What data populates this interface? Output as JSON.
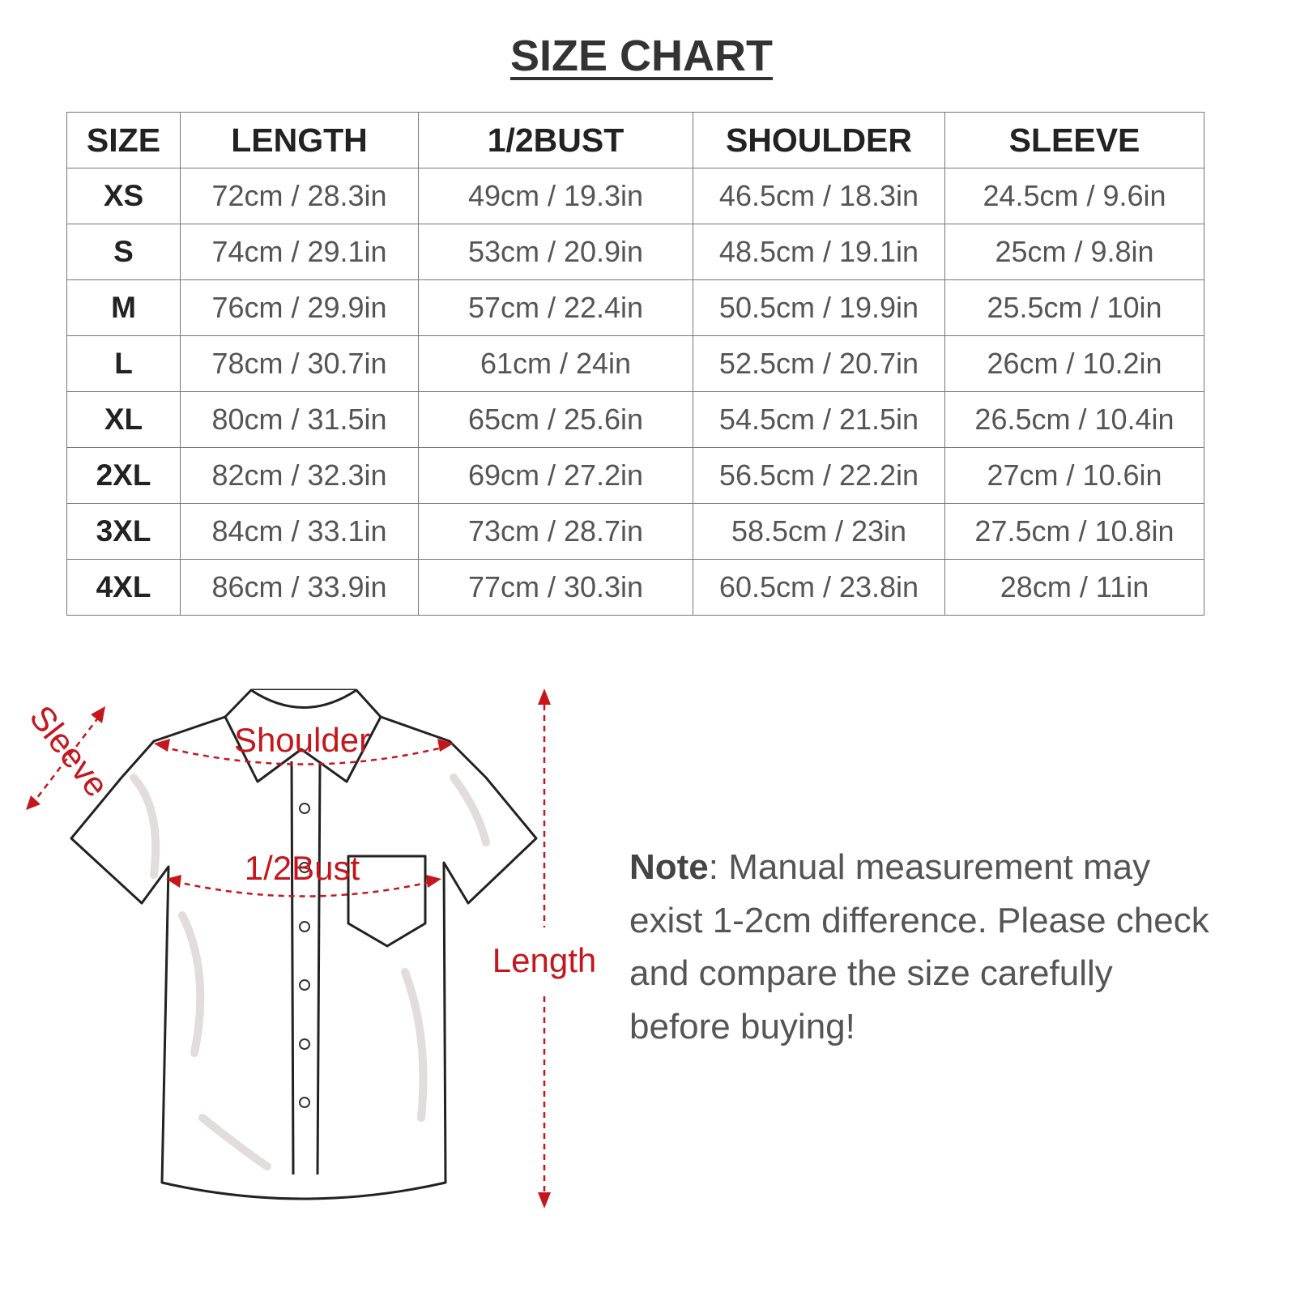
{
  "title": "SIZE CHART",
  "table": {
    "header": [
      "SIZE",
      "LENGTH",
      "1/2BUST",
      "SHOULDER",
      "SLEEVE"
    ],
    "rows": [
      [
        "XS",
        "72cm / 28.3in",
        "49cm / 19.3in",
        "46.5cm / 18.3in",
        "24.5cm / 9.6in"
      ],
      [
        "S",
        "74cm / 29.1in",
        "53cm / 20.9in",
        "48.5cm / 19.1in",
        "25cm / 9.8in"
      ],
      [
        "M",
        "76cm / 29.9in",
        "57cm / 22.4in",
        "50.5cm / 19.9in",
        "25.5cm / 10in"
      ],
      [
        "L",
        "78cm / 30.7in",
        "61cm / 24in",
        "52.5cm / 20.7in",
        "26cm / 10.2in"
      ],
      [
        "XL",
        "80cm / 31.5in",
        "65cm / 25.6in",
        "54.5cm / 21.5in",
        "26.5cm / 10.4in"
      ],
      [
        "2XL",
        "82cm / 32.3in",
        "69cm / 27.2in",
        "56.5cm / 22.2in",
        "27cm / 10.6in"
      ],
      [
        "3XL",
        "84cm / 33.1in",
        "73cm / 28.7in",
        "58.5cm / 23in",
        "27.5cm / 10.8in"
      ],
      [
        "4XL",
        "86cm / 33.9in",
        "77cm / 30.3in",
        "60.5cm / 23.8in",
        "28cm / 11in"
      ]
    ]
  },
  "diagram": {
    "sleeve": "Sleeve",
    "shoulder": "Shoulder",
    "bust": "1/2Bust",
    "length": "Length"
  },
  "note": {
    "label": "Note",
    "text": ": Manual measurement may exist 1-2cm difference. Please check and compare the size carefully before buying!"
  }
}
